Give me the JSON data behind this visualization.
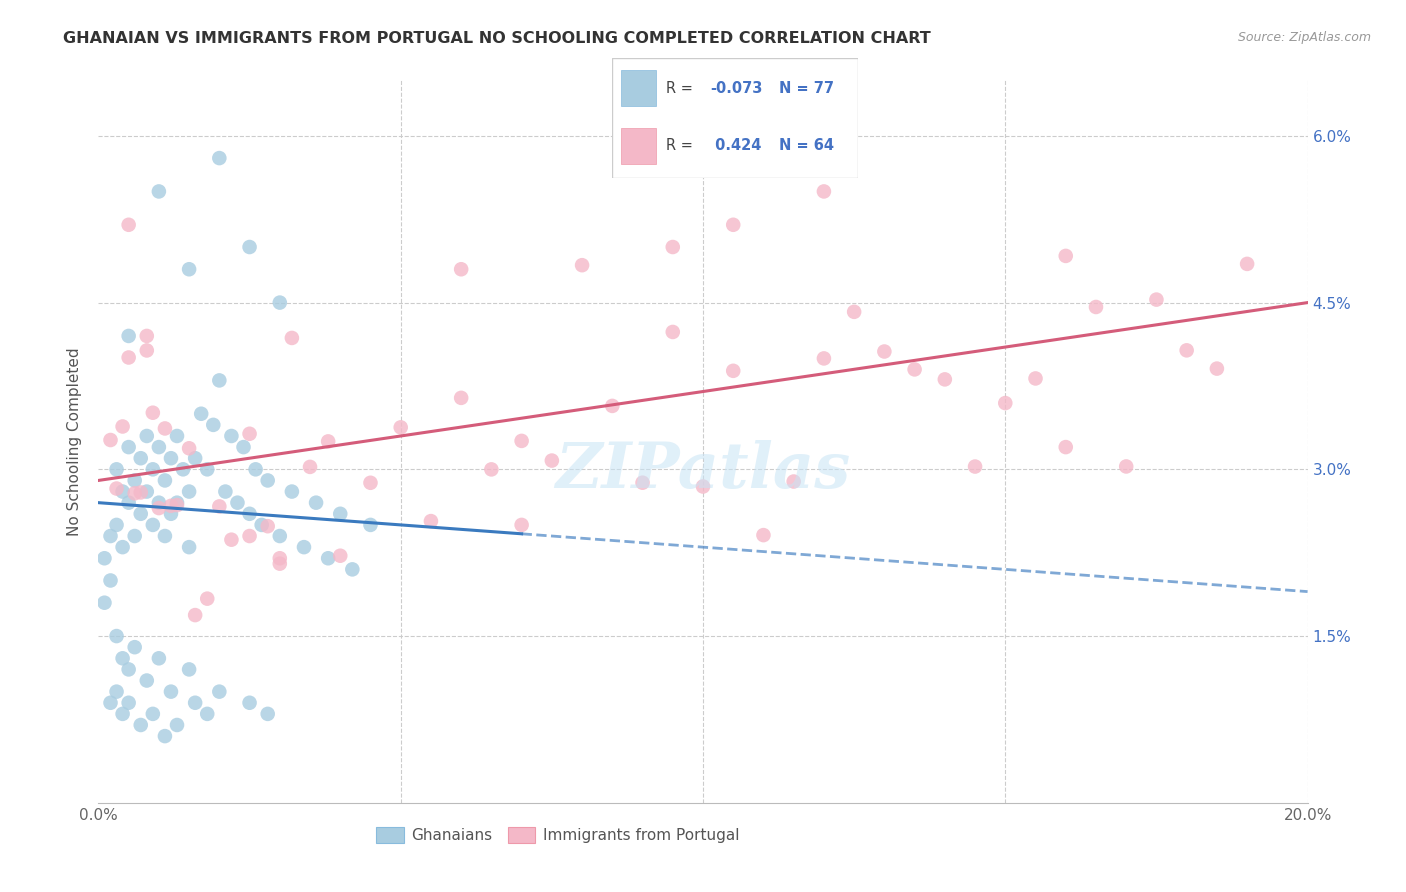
{
  "title": "GHANAIAN VS IMMIGRANTS FROM PORTUGAL NO SCHOOLING COMPLETED CORRELATION CHART",
  "source": "Source: ZipAtlas.com",
  "ylabel": "No Schooling Completed",
  "xlim": [
    0.0,
    0.2
  ],
  "ylim": [
    0.0,
    0.065
  ],
  "yticks": [
    0.015,
    0.03,
    0.045,
    0.06
  ],
  "ytick_labels": [
    "1.5%",
    "3.0%",
    "4.5%",
    "6.0%"
  ],
  "xticks": [
    0.0,
    0.05,
    0.1,
    0.15,
    0.2
  ],
  "xtick_labels": [
    "0.0%",
    "",
    "",
    "",
    "20.0%"
  ],
  "color_blue": "#a8cce0",
  "color_pink": "#f4b8c8",
  "color_blue_line": "#3a7abf",
  "color_pink_line": "#d45c7a",
  "watermark": "ZIPatlas",
  "blue_line_x0": 0.0,
  "blue_line_y0": 0.027,
  "blue_line_x1": 0.2,
  "blue_line_y1": 0.019,
  "blue_line_solid_end": 0.07,
  "pink_line_x0": 0.0,
  "pink_line_y0": 0.029,
  "pink_line_x1": 0.2,
  "pink_line_y1": 0.045,
  "legend_r1": "-0.073",
  "legend_n1": "77",
  "legend_r2": "0.424",
  "legend_n2": "64"
}
